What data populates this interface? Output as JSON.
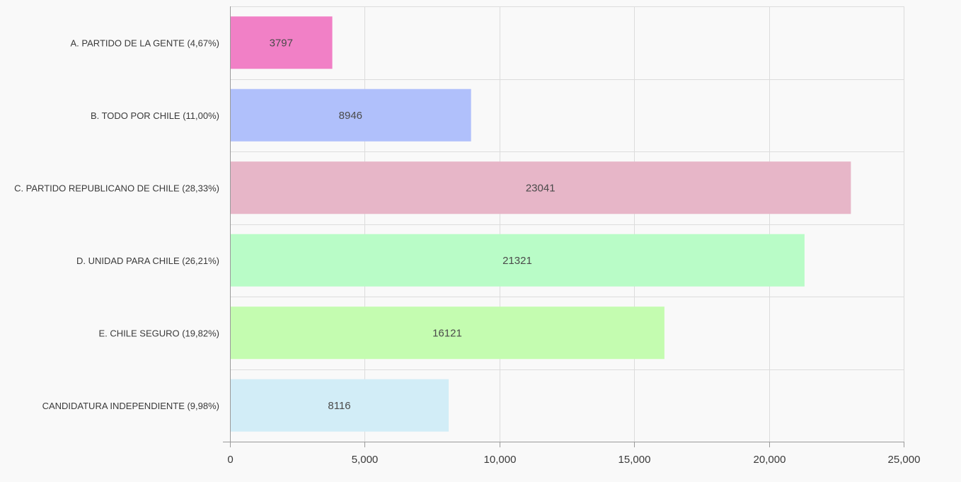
{
  "chart_data": {
    "type": "bar",
    "orientation": "horizontal",
    "title": "",
    "xlabel": "",
    "ylabel": "",
    "xlim": [
      0,
      25000
    ],
    "x_ticks": [
      0,
      5000,
      10000,
      15000,
      20000,
      25000
    ],
    "x_tick_labels": [
      "0",
      "5,000",
      "10,000",
      "15,000",
      "20,000",
      "25,000"
    ],
    "grid": true,
    "legend": "none",
    "categories": [
      "A. PARTIDO DE LA GENTE (4,67%)",
      "B. TODO POR CHILE (11,00%)",
      "C. PARTIDO REPUBLICANO DE CHILE (28,33%)",
      "D. UNIDAD PARA CHILE (26,21%)",
      "E. CHILE SEGURO (19,82%)",
      "CANDIDATURA INDEPENDIENTE (9,98%)"
    ],
    "values": [
      3797,
      8946,
      23041,
      21321,
      16121,
      8116
    ],
    "data_labels": [
      "3797",
      "8946",
      "23041",
      "21321",
      "16121",
      "8116"
    ],
    "colors": [
      "#f180c6",
      "#b0c0fb",
      "#e7b6c8",
      "#b9fcc7",
      "#c4fcb0",
      "#d2edf7"
    ]
  }
}
